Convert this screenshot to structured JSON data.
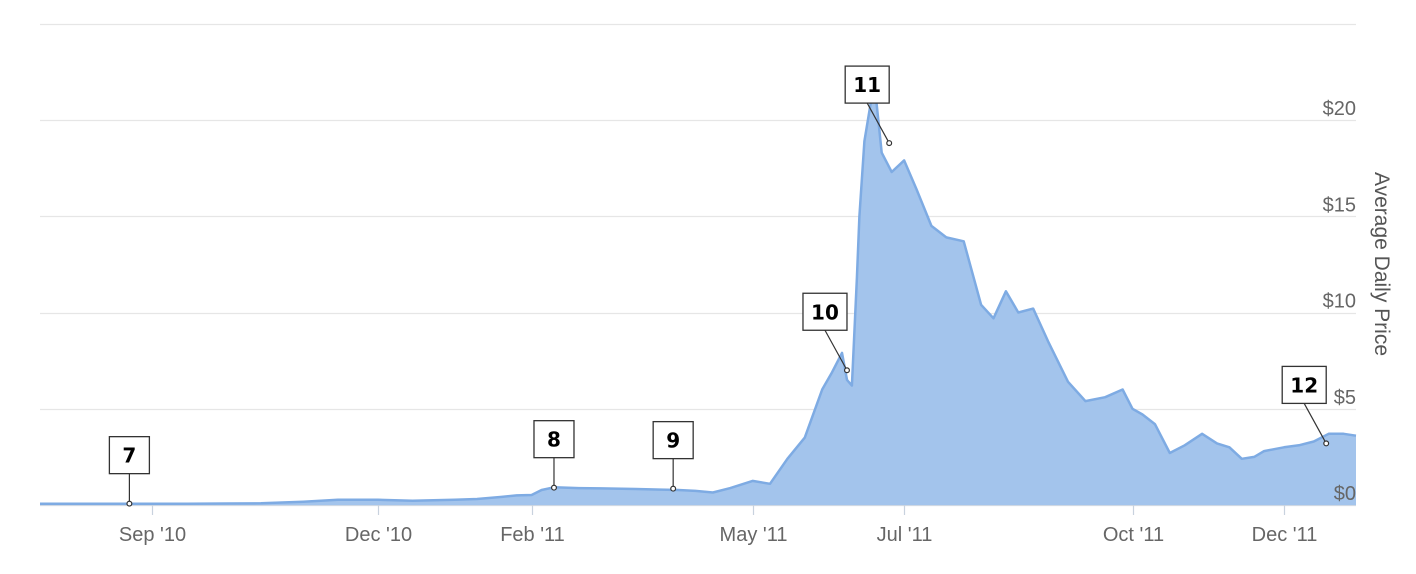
{
  "chart_data": {
    "type": "area",
    "title": "",
    "xlabel": "",
    "ylabel": "Average Daily Price",
    "y_axis_position": "right",
    "y_ticks": [
      "$0",
      "$5",
      "$10",
      "$15",
      "$20"
    ],
    "y_tick_values": [
      0,
      5,
      10,
      15,
      20
    ],
    "ylim": [
      0,
      25
    ],
    "x_ticks": [
      {
        "label": "Sep '10",
        "date": "2010-09-01"
      },
      {
        "label": "Dec '10",
        "date": "2010-12-01"
      },
      {
        "label": "Feb '11",
        "date": "2011-02-01"
      },
      {
        "label": "May '11",
        "date": "2011-05-01"
      },
      {
        "label": "Jul '11",
        "date": "2011-07-01"
      },
      {
        "label": "Oct '11",
        "date": "2011-10-01"
      },
      {
        "label": "Dec '11",
        "date": "2011-12-01"
      }
    ],
    "xlim": [
      "2010-07-18",
      "2011-12-30"
    ],
    "grid": true,
    "legend": "none",
    "colors": {
      "fill": "#a3c4ec",
      "line": "#7eabe3",
      "grid": "#e6e6e6",
      "flag_border": "#333333"
    },
    "series": [
      {
        "x": [
          "2010-07-18",
          "2010-08-01",
          "2010-08-15",
          "2010-09-01",
          "2010-09-15",
          "2010-10-01",
          "2010-10-15",
          "2010-11-01",
          "2010-11-15",
          "2010-12-01",
          "2010-12-15",
          "2011-01-01",
          "2011-01-10",
          "2011-01-20",
          "2011-01-26",
          "2011-02-01",
          "2011-02-05",
          "2011-02-10",
          "2011-02-20",
          "2011-03-01",
          "2011-03-15",
          "2011-03-25",
          "2011-04-01",
          "2011-04-08",
          "2011-04-15",
          "2011-04-22",
          "2011-05-01",
          "2011-05-08",
          "2011-05-15",
          "2011-05-22",
          "2011-05-29",
          "2011-06-02",
          "2011-06-06",
          "2011-06-08",
          "2011-06-10",
          "2011-06-12",
          "2011-06-13",
          "2011-06-15",
          "2011-06-19",
          "2011-06-22",
          "2011-06-26",
          "2011-07-01",
          "2011-07-06",
          "2011-07-12",
          "2011-07-18",
          "2011-07-25",
          "2011-08-01",
          "2011-08-06",
          "2011-08-11",
          "2011-08-16",
          "2011-08-22",
          "2011-08-28",
          "2011-09-05",
          "2011-09-12",
          "2011-09-20",
          "2011-09-27",
          "2011-10-01",
          "2011-10-05",
          "2011-10-10",
          "2011-10-16",
          "2011-10-22",
          "2011-10-29",
          "2011-11-04",
          "2011-11-09",
          "2011-11-14",
          "2011-11-19",
          "2011-11-23",
          "2011-11-27",
          "2011-12-01",
          "2011-12-07",
          "2011-12-13",
          "2011-12-19",
          "2011-12-25",
          "2011-12-30"
        ],
        "values": [
          0.07,
          0.07,
          0.07,
          0.07,
          0.07,
          0.08,
          0.09,
          0.17,
          0.27,
          0.27,
          0.22,
          0.27,
          0.31,
          0.42,
          0.5,
          0.52,
          0.78,
          0.92,
          0.88,
          0.86,
          0.83,
          0.8,
          0.78,
          0.73,
          0.65,
          0.88,
          1.25,
          1.1,
          2.4,
          3.5,
          6.0,
          6.9,
          7.9,
          6.5,
          6.2,
          11.8,
          15.0,
          18.9,
          22.0,
          18.3,
          17.3,
          17.9,
          16.4,
          14.5,
          13.9,
          13.7,
          10.4,
          9.7,
          11.1,
          10.0,
          10.2,
          8.5,
          6.4,
          5.4,
          5.6,
          6.0,
          5.0,
          4.7,
          4.2,
          2.7,
          3.1,
          3.7,
          3.2,
          3.0,
          2.4,
          2.5,
          2.8,
          2.9,
          3.0,
          3.1,
          3.3,
          3.7,
          3.7,
          3.6
        ]
      }
    ],
    "annotations": [
      {
        "label": "7",
        "x": "2010-08-23",
        "y": 0.07
      },
      {
        "label": "8",
        "x": "2011-02-10",
        "y": 0.9
      },
      {
        "label": "9",
        "x": "2011-03-30",
        "y": 0.85
      },
      {
        "label": "10",
        "x": "2011-06-08",
        "y": 7.0
      },
      {
        "label": "11",
        "x": "2011-06-25",
        "y": 18.8
      },
      {
        "label": "12",
        "x": "2011-12-18",
        "y": 3.2
      }
    ]
  }
}
